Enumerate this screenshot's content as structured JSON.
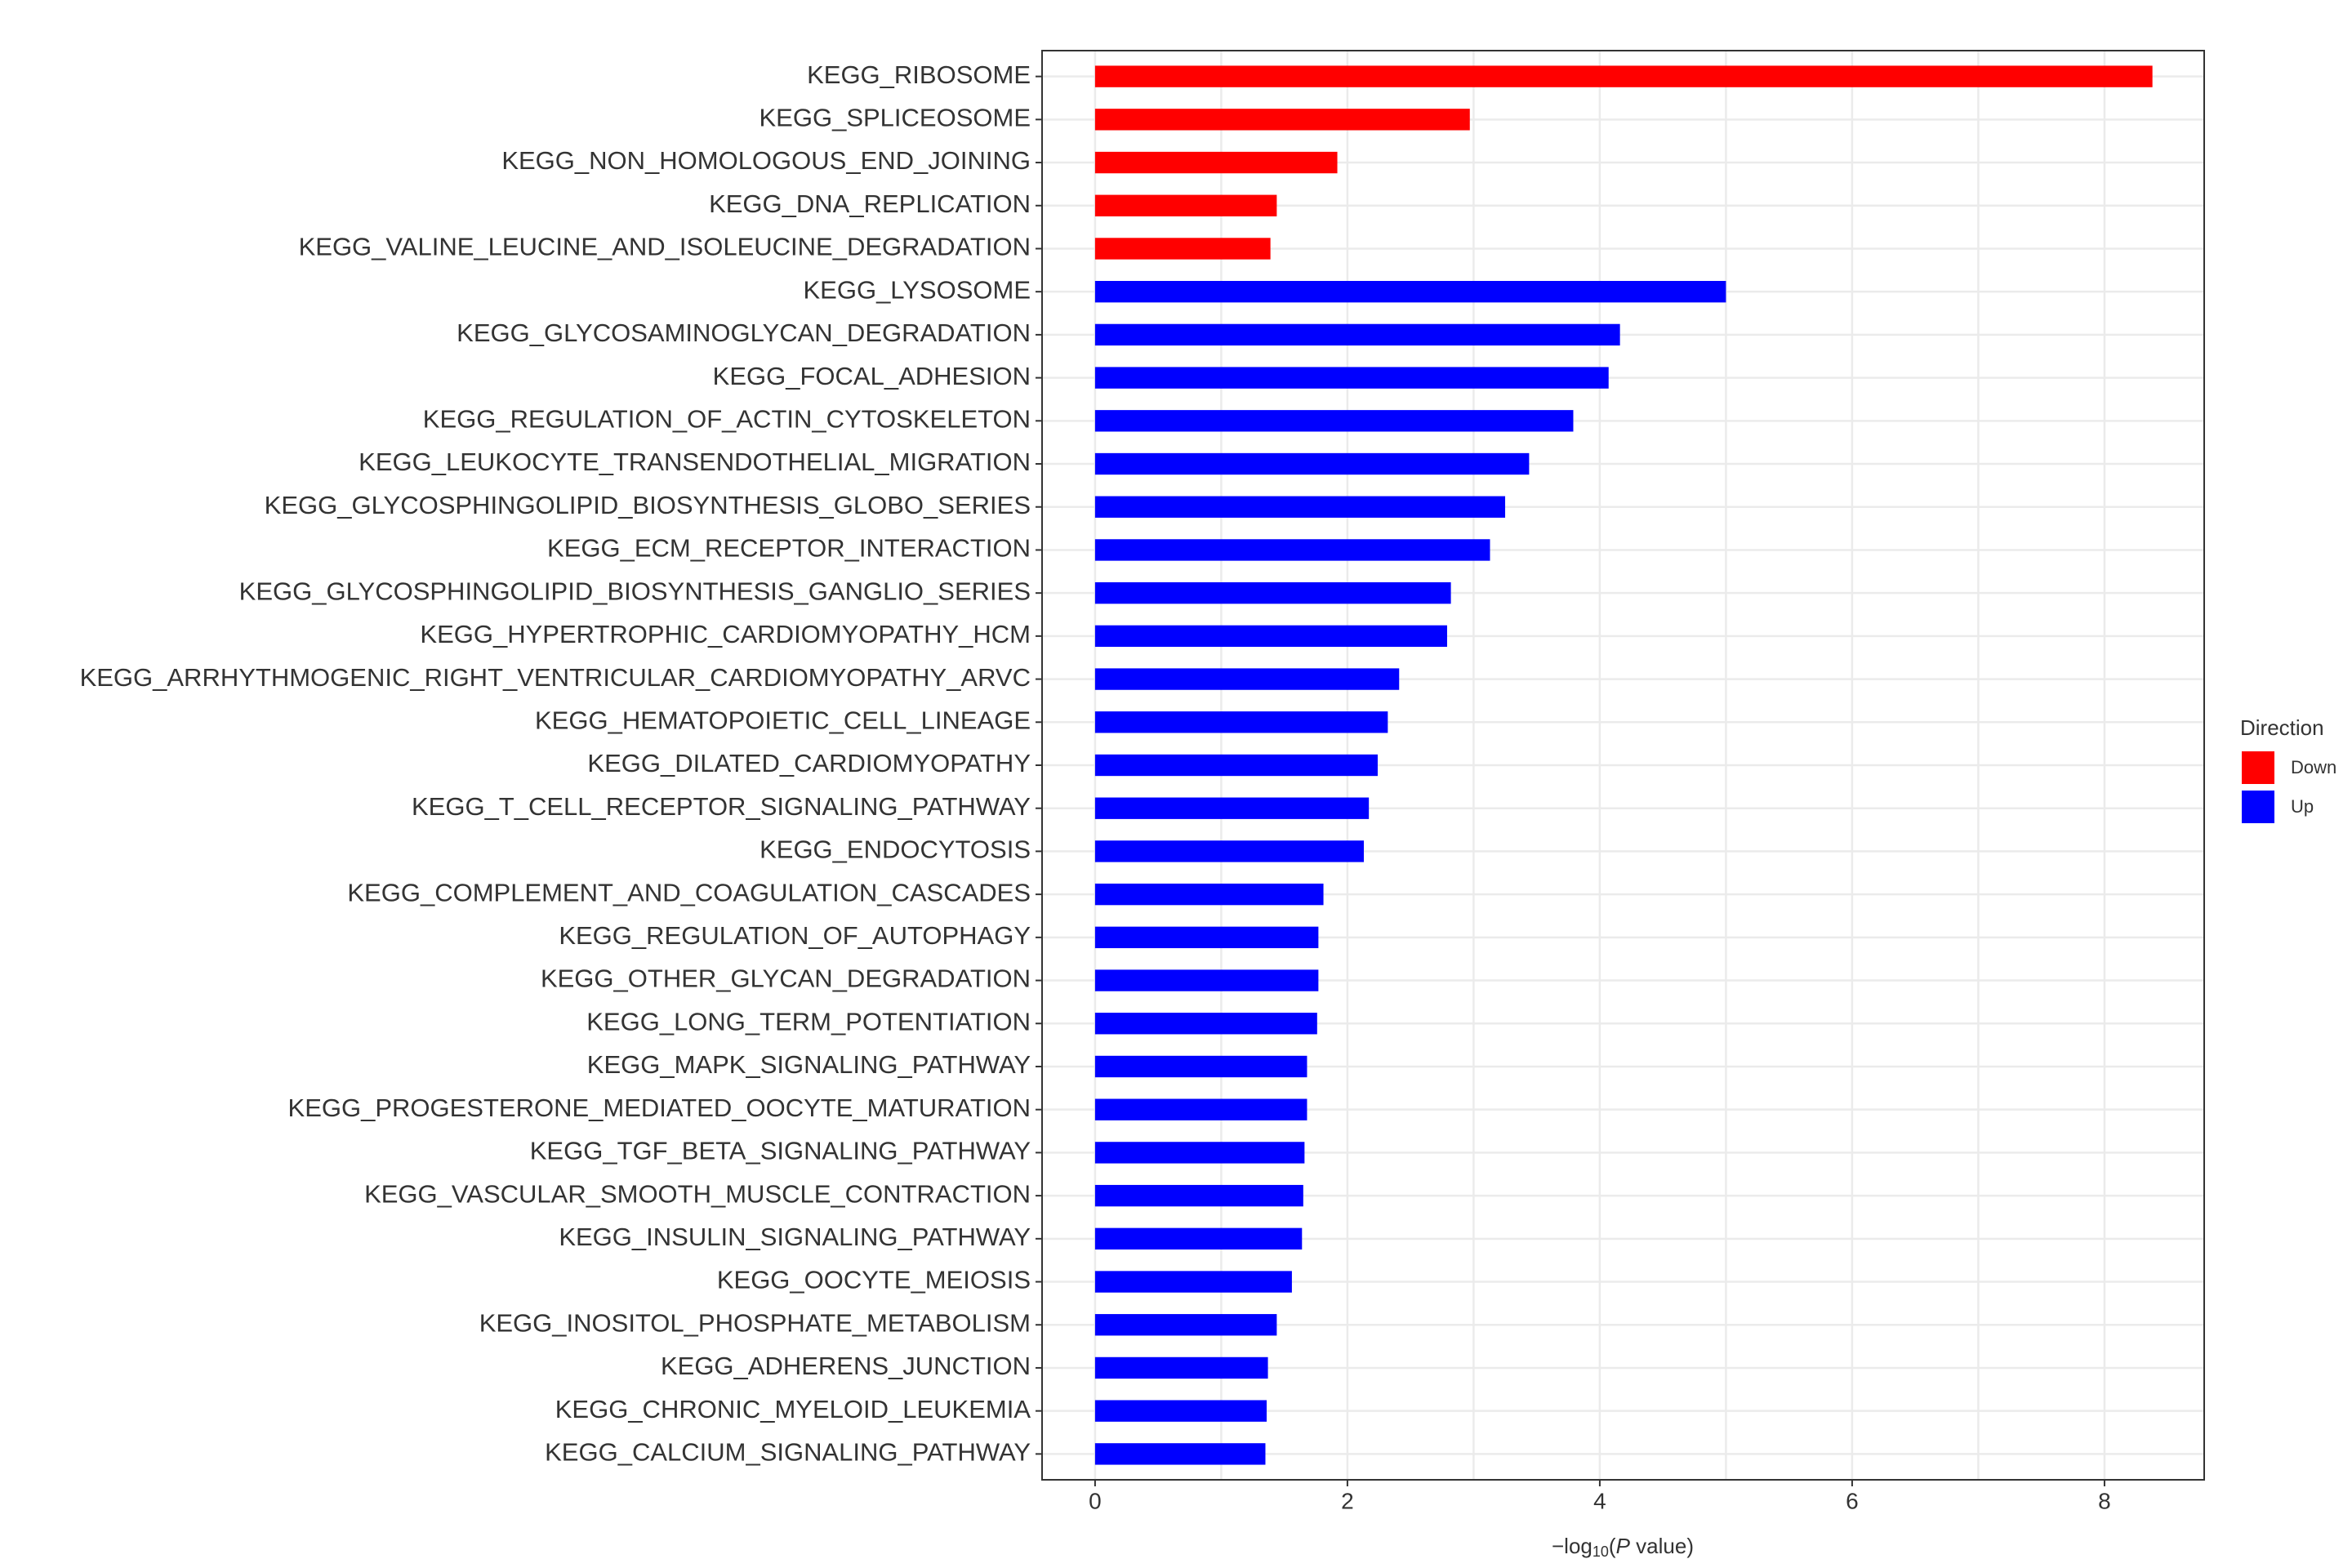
{
  "chart_data": {
    "type": "barh",
    "categories": [
      "KEGG_RIBOSOME",
      "KEGG_SPLICEOSOME",
      "KEGG_NON_HOMOLOGOUS_END_JOINING",
      "KEGG_DNA_REPLICATION",
      "KEGG_VALINE_LEUCINE_AND_ISOLEUCINE_DEGRADATION",
      "KEGG_LYSOSOME",
      "KEGG_GLYCOSAMINOGLYCAN_DEGRADATION",
      "KEGG_FOCAL_ADHESION",
      "KEGG_REGULATION_OF_ACTIN_CYTOSKELETON",
      "KEGG_LEUKOCYTE_TRANSENDOTHELIAL_MIGRATION",
      "KEGG_GLYCOSPHINGOLIPID_BIOSYNTHESIS_GLOBO_SERIES",
      "KEGG_ECM_RECEPTOR_INTERACTION",
      "KEGG_GLYCOSPHINGOLIPID_BIOSYNTHESIS_GANGLIO_SERIES",
      "KEGG_HYPERTROPHIC_CARDIOMYOPATHY_HCM",
      "KEGG_ARRHYTHMOGENIC_RIGHT_VENTRICULAR_CARDIOMYOPATHY_ARVC",
      "KEGG_HEMATOPOIETIC_CELL_LINEAGE",
      "KEGG_DILATED_CARDIOMYOPATHY",
      "KEGG_T_CELL_RECEPTOR_SIGNALING_PATHWAY",
      "KEGG_ENDOCYTOSIS",
      "KEGG_COMPLEMENT_AND_COAGULATION_CASCADES",
      "KEGG_REGULATION_OF_AUTOPHAGY",
      "KEGG_OTHER_GLYCAN_DEGRADATION",
      "KEGG_LONG_TERM_POTENTIATION",
      "KEGG_MAPK_SIGNALING_PATHWAY",
      "KEGG_PROGESTERONE_MEDIATED_OOCYTE_MATURATION",
      "KEGG_TGF_BETA_SIGNALING_PATHWAY",
      "KEGG_VASCULAR_SMOOTH_MUSCLE_CONTRACTION",
      "KEGG_INSULIN_SIGNALING_PATHWAY",
      "KEGG_OOCYTE_MEIOSIS",
      "KEGG_INOSITOL_PHOSPHATE_METABOLISM",
      "KEGG_ADHERENS_JUNCTION",
      "KEGG_CHRONIC_MYELOID_LEUKEMIA",
      "KEGG_CALCIUM_SIGNALING_PATHWAY"
    ],
    "series": [
      {
        "name": "Down",
        "color": "#ff0000",
        "values": [
          8.38,
          2.97,
          1.92,
          1.44,
          1.39,
          null,
          null,
          null,
          null,
          null,
          null,
          null,
          null,
          null,
          null,
          null,
          null,
          null,
          null,
          null,
          null,
          null,
          null,
          null,
          null,
          null,
          null,
          null,
          null,
          null,
          null,
          null,
          null
        ]
      },
      {
        "name": "Up",
        "color": "#0000ff",
        "values": [
          null,
          null,
          null,
          null,
          null,
          5.0,
          4.16,
          4.07,
          3.79,
          3.44,
          3.25,
          3.13,
          2.82,
          2.79,
          2.41,
          2.32,
          2.24,
          2.17,
          2.13,
          1.81,
          1.77,
          1.77,
          1.76,
          1.68,
          1.68,
          1.66,
          1.65,
          1.64,
          1.56,
          1.44,
          1.37,
          1.36,
          1.35
        ]
      }
    ],
    "legend_title": "Direction",
    "xlabel_parts": [
      "−log",
      "10",
      "(",
      "P",
      " value)"
    ],
    "xlim": [
      -0.42,
      8.79
    ],
    "xticks": [
      0,
      2,
      4,
      6,
      8
    ],
    "grid": true
  }
}
